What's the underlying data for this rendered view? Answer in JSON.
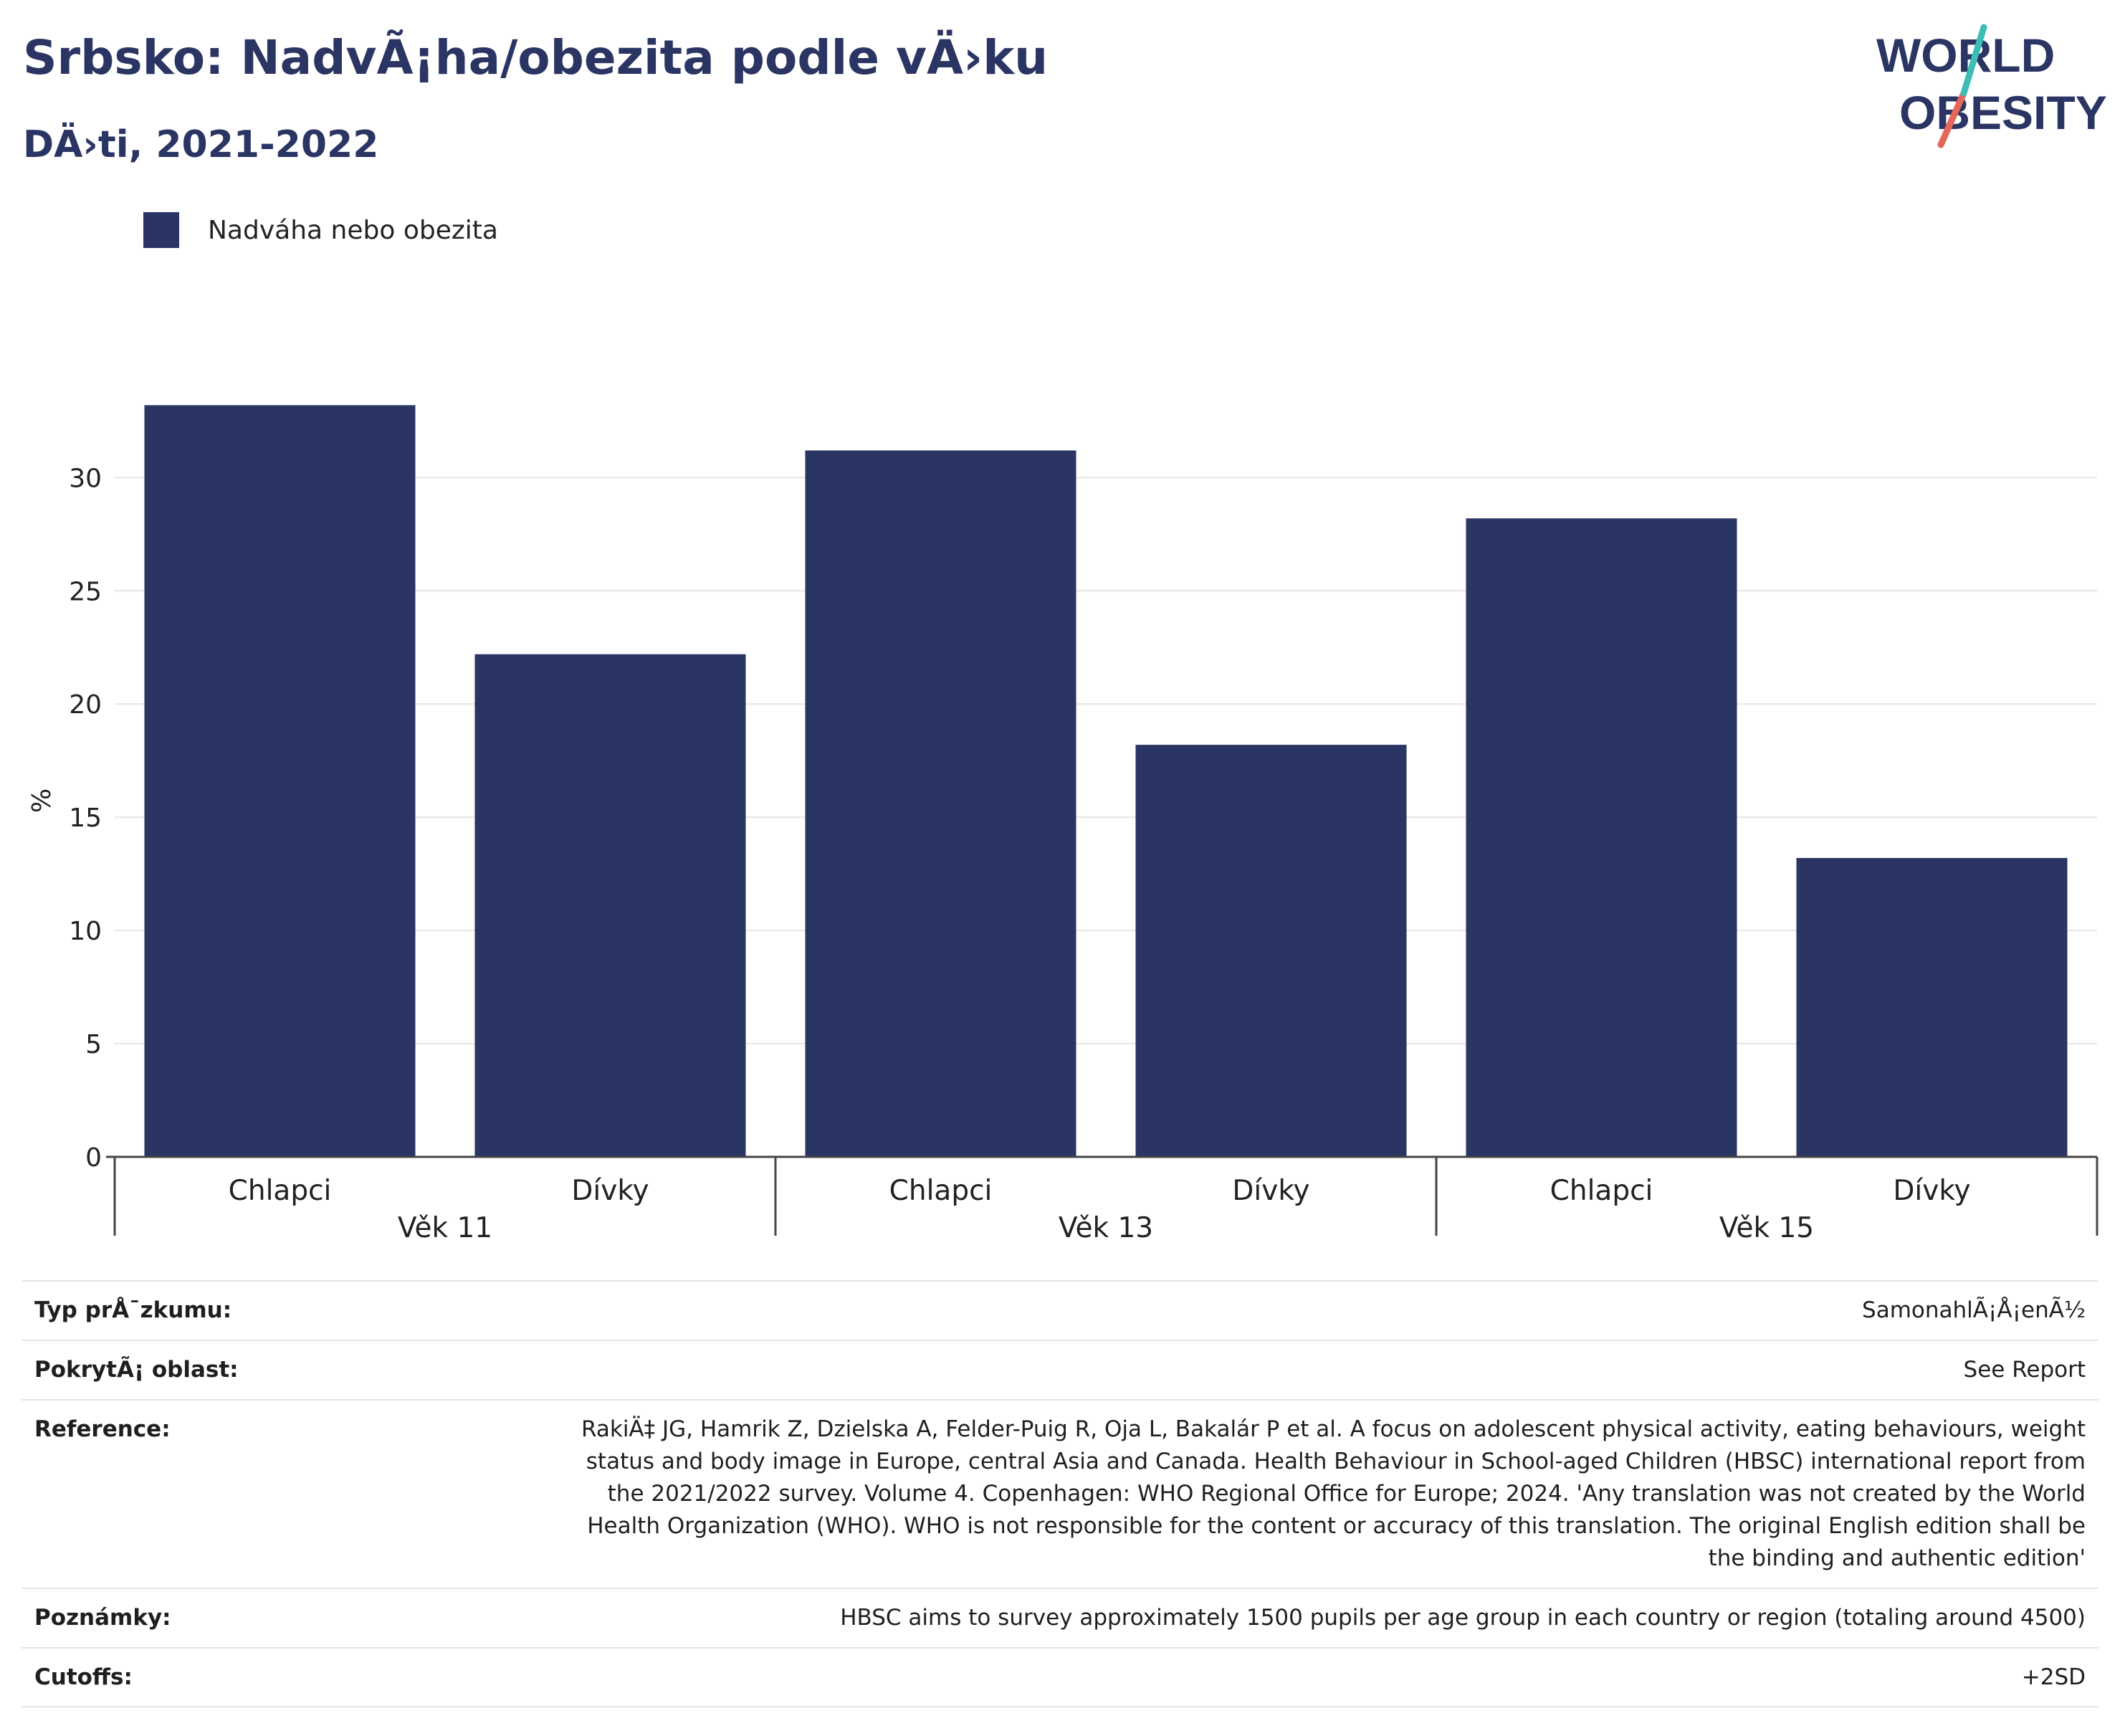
{
  "title": "Srbsko: NadvÃ¡ha/obezita podle vÄ›ku",
  "subtitle": "DÄ›ti, 2021-2022",
  "logo": {
    "line1": "WORLD",
    "line2": "OBESITY"
  },
  "colors": {
    "bar": "#2b3563",
    "brand": "#2b3563",
    "logo_teal": "#3dbdb5",
    "logo_red": "#e5675a"
  },
  "chart_data": {
    "type": "bar",
    "ylabel": "%",
    "ylim": [
      0,
      34
    ],
    "yticks": [
      0,
      5,
      10,
      15,
      20,
      25,
      30
    ],
    "grid": true,
    "legend_position": "top-left",
    "groups": [
      "Věk 11",
      "Věk 13",
      "Věk 15"
    ],
    "categories": [
      "Chlapci",
      "Dívky",
      "Chlapci",
      "Dívky",
      "Chlapci",
      "Dívky"
    ],
    "series": [
      {
        "name": "Nadváha nebo obezita",
        "values": [
          33.2,
          22.2,
          31.2,
          18.2,
          28.2,
          13.2
        ]
      }
    ]
  },
  "info": [
    {
      "key": "Typ prÅ¯zkumu:",
      "value": "SamonahlÃ¡Å¡enÃ½"
    },
    {
      "key": "PokrytÃ¡ oblast:",
      "value": "See Report"
    },
    {
      "key": "Reference:",
      "value": "RakiÄ‡ JG, Hamrik Z, Dzielska A, Felder-Puig R, Oja L, Bakalár P et al. A focus on adolescent physical activity, eating behaviours, weight status and body image in Europe, central Asia and Canada. Health Behaviour in School-aged Children (HBSC) international report from the 2021/2022 survey. Volume 4. Copenhagen: WHO Regional Office for Europe; 2024. 'Any translation was not created by the World Health Organization (WHO). WHO is not responsible for the content or accuracy of this translation. The original English edition shall be the binding and authentic edition'"
    },
    {
      "key": "Poznámky:",
      "value": "HBSC aims to survey approximately 1500 pupils per age group in each country or region (totaling around 4500)"
    },
    {
      "key": "Cutoffs:",
      "value": "+2SD"
    }
  ]
}
